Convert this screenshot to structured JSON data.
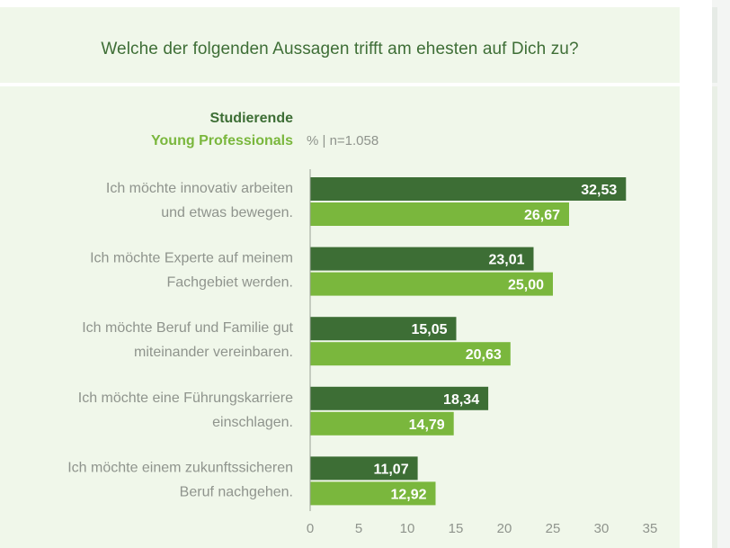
{
  "title": "Welche der folgenden Aussagen trifft am ehesten auf Dich zu?",
  "chart_data": {
    "type": "bar",
    "orientation": "horizontal",
    "title": "Welche der folgenden Aussagen trifft am ehesten auf Dich zu?",
    "categories": [
      [
        "Ich möchte innovativ arbeiten",
        "und etwas bewegen."
      ],
      [
        "Ich möchte Experte auf meinem",
        "Fachgebiet werden."
      ],
      [
        "Ich möchte Beruf und Familie gut",
        "miteinander vereinbaren."
      ],
      [
        "Ich möchte eine Führungskarriere",
        "einschlagen."
      ],
      [
        "Ich möchte einem zukunftssicheren",
        "Beruf nachgehen."
      ]
    ],
    "series": [
      {
        "name": "Studierende",
        "color": "#3d6e35",
        "values": [
          32.53,
          23.01,
          15.05,
          18.34,
          11.07
        ],
        "labels": [
          "32,53",
          "23,01",
          "15,05",
          "18,34",
          "11,07"
        ]
      },
      {
        "name": "Young Professionals",
        "color": "#7ab73d",
        "values": [
          26.67,
          25.0,
          20.63,
          14.79,
          12.92
        ],
        "labels": [
          "26,67",
          "25,00",
          "20,63",
          "14,79",
          "12,92"
        ]
      }
    ],
    "legend_note": "% | n=1.058",
    "xlim": [
      0,
      35
    ],
    "xticks": [
      0,
      5,
      10,
      15,
      20,
      25,
      30,
      35
    ],
    "grid": false,
    "legend_position": "top-left"
  }
}
